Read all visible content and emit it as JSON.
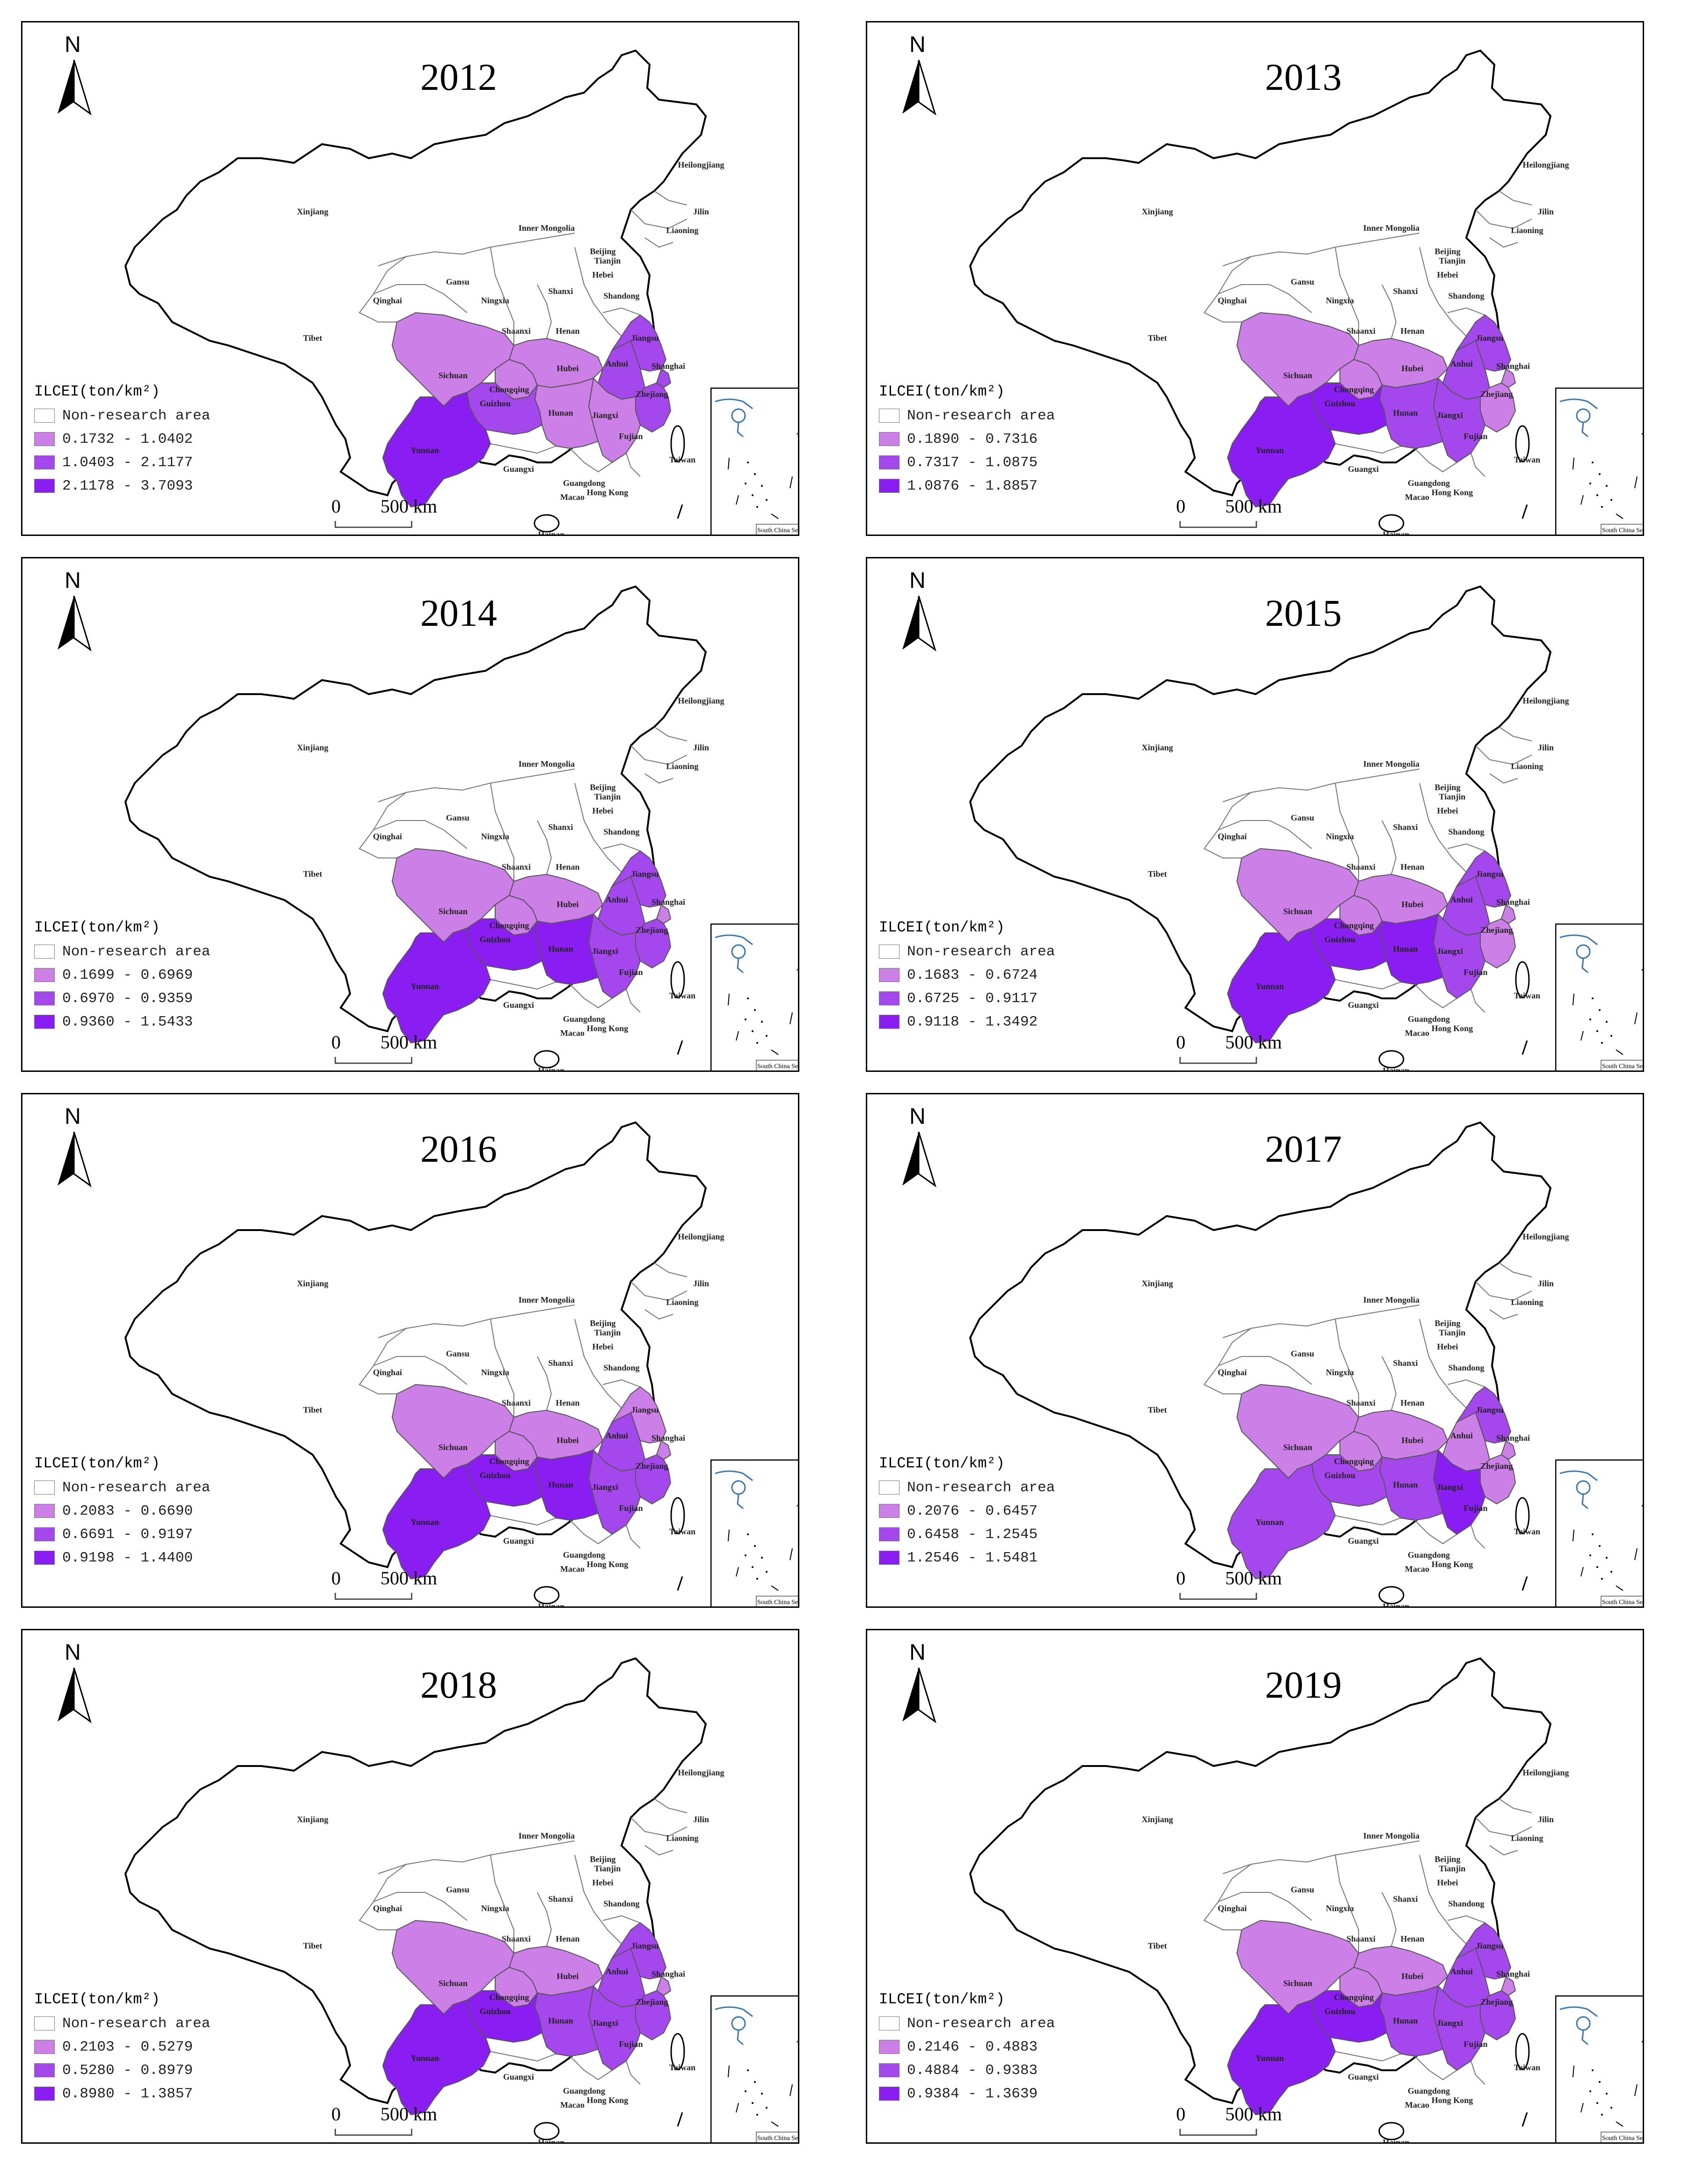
{
  "legend_title": "ILCEI(ton/km²)",
  "non_research_label": "Non-research area",
  "north_label": "N",
  "scale": {
    "zero": "0",
    "distance": "500 km"
  },
  "inset_label": "South China Sea",
  "colors": {
    "light": "#cc7fe6",
    "medium": "#a447ec",
    "dark": "#8a1ef2",
    "none": "#ffffff"
  },
  "province_labels": [
    "Xinjiang",
    "Tibet",
    "Qinghai",
    "Gansu",
    "Ningxia",
    "Inner Mongolia",
    "Heilongjiang",
    "Jilin",
    "Liaoning",
    "Beijing",
    "Tianjin",
    "Hebei",
    "Shanxi",
    "Shandong",
    "Shaanxi",
    "Henan",
    "Jiangsu",
    "Anhui",
    "Shanghai",
    "Hubei",
    "Sichuan",
    "Chongqing",
    "Zhejiang",
    "Hunan",
    "Jiangxi",
    "Guizhou",
    "Yunnan",
    "Fujian",
    "Taiwan",
    "Guangxi",
    "Guangdong",
    "Hong Kong",
    "Macao",
    "Hainan"
  ],
  "panels": [
    {
      "year": "2012",
      "ranges": [
        "0.1732 - 1.0402",
        "1.0403 - 2.1177",
        "2.1178 - 3.7093"
      ],
      "classes": {
        "Sichuan": "light",
        "Chongqing": "light",
        "Hubei": "light",
        "Hunan": "light",
        "Jiangxi": "light",
        "Anhui": "medium",
        "Jiangsu": "medium",
        "Shanghai": "medium",
        "Zhejiang": "medium",
        "Guizhou": "medium",
        "Yunnan": "dark"
      }
    },
    {
      "year": "2013",
      "ranges": [
        "0.1890 - 0.7316",
        "0.7317 - 1.0875",
        "1.0876 - 1.8857"
      ],
      "classes": {
        "Sichuan": "light",
        "Chongqing": "light",
        "Hubei": "light",
        "Hunan": "medium",
        "Jiangxi": "medium",
        "Anhui": "medium",
        "Jiangsu": "medium",
        "Shanghai": "light",
        "Zhejiang": "light",
        "Guizhou": "dark",
        "Yunnan": "dark"
      }
    },
    {
      "year": "2014",
      "ranges": [
        "0.1699 - 0.6969",
        "0.6970 - 0.9359",
        "0.9360 - 1.5433"
      ],
      "classes": {
        "Sichuan": "light",
        "Chongqing": "light",
        "Hubei": "light",
        "Hunan": "dark",
        "Jiangxi": "medium",
        "Anhui": "medium",
        "Jiangsu": "medium",
        "Shanghai": "light",
        "Zhejiang": "medium",
        "Guizhou": "dark",
        "Yunnan": "dark"
      }
    },
    {
      "year": "2015",
      "ranges": [
        "0.1683 - 0.6724",
        "0.6725 - 0.9117",
        "0.9118 - 1.3492"
      ],
      "classes": {
        "Sichuan": "light",
        "Chongqing": "light",
        "Hubei": "light",
        "Hunan": "dark",
        "Jiangxi": "medium",
        "Anhui": "medium",
        "Jiangsu": "medium",
        "Shanghai": "light",
        "Zhejiang": "light",
        "Guizhou": "dark",
        "Yunnan": "dark"
      }
    },
    {
      "year": "2016",
      "ranges": [
        "0.2083 - 0.6690",
        "0.6691 - 0.9197",
        "0.9198 - 1.4400"
      ],
      "classes": {
        "Sichuan": "light",
        "Chongqing": "light",
        "Hubei": "light",
        "Hunan": "dark",
        "Jiangxi": "medium",
        "Anhui": "medium",
        "Jiangsu": "light",
        "Shanghai": "light",
        "Zhejiang": "medium",
        "Guizhou": "dark",
        "Yunnan": "dark"
      }
    },
    {
      "year": "2017",
      "ranges": [
        "0.2076 - 0.6457",
        "0.6458 - 1.2545",
        "1.2546 - 1.5481"
      ],
      "classes": {
        "Sichuan": "light",
        "Chongqing": "light",
        "Hubei": "light",
        "Hunan": "medium",
        "Jiangxi": "dark",
        "Anhui": "light",
        "Jiangsu": "medium",
        "Shanghai": "light",
        "Zhejiang": "light",
        "Guizhou": "medium",
        "Yunnan": "medium"
      }
    },
    {
      "year": "2018",
      "ranges": [
        "0.2103 - 0.5279",
        "0.5280 - 0.8979",
        "0.8980 - 1.3857"
      ],
      "classes": {
        "Sichuan": "light",
        "Chongqing": "light",
        "Hubei": "light",
        "Hunan": "medium",
        "Jiangxi": "medium",
        "Anhui": "medium",
        "Jiangsu": "medium",
        "Shanghai": "light",
        "Zhejiang": "medium",
        "Guizhou": "dark",
        "Yunnan": "dark"
      }
    },
    {
      "year": "2019",
      "ranges": [
        "0.2146 - 0.4883",
        "0.4884 - 0.9383",
        "0.9384 - 1.3639"
      ],
      "classes": {
        "Sichuan": "light",
        "Chongqing": "light",
        "Hubei": "light",
        "Hunan": "medium",
        "Jiangxi": "medium",
        "Anhui": "medium",
        "Jiangsu": "medium",
        "Shanghai": "light",
        "Zhejiang": "medium",
        "Guizhou": "dark",
        "Yunnan": "dark"
      }
    }
  ]
}
